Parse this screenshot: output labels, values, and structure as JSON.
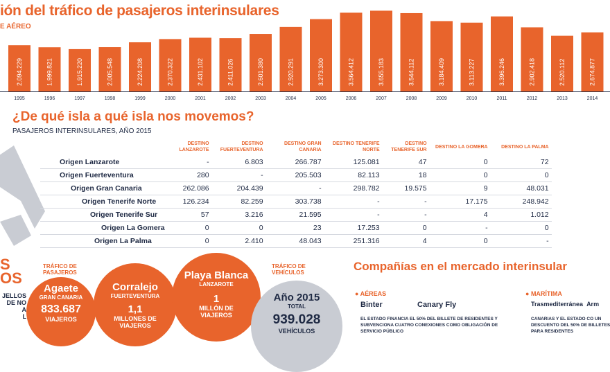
{
  "header": {
    "title": "ión del tráfico de pasajeros interinsulares",
    "subtitle": "E AÉREO"
  },
  "chart_data": {
    "type": "bar",
    "categories": [
      "1995",
      "1996",
      "1997",
      "1998",
      "1999",
      "2000",
      "2001",
      "2002",
      "2003",
      "2004",
      "2005",
      "2006",
      "2007",
      "2008",
      "2009",
      "2010",
      "2011",
      "2012",
      "2013",
      "2014"
    ],
    "values": [
      2094229,
      1999821,
      1915220,
      2005548,
      2224208,
      2370322,
      2431102,
      2411026,
      2601380,
      2920291,
      3273300,
      3564412,
      3655183,
      3544112,
      3184409,
      3113227,
      3396246,
      2902418,
      2520112,
      2674877
    ],
    "labels": [
      "2.094.229",
      "1.999.821",
      "1.915.220",
      "2.005.548",
      "2.224.208",
      "2.370.322",
      "2.431.102",
      "2.411.026",
      "2.601.380",
      "2.920.291",
      "3.273.300",
      "3.564.412",
      "3.655.183",
      "3.544.112",
      "3.184.409",
      "3.113.227",
      "3.396.246",
      "2.902.418",
      "2.520.112",
      "2.674.877"
    ],
    "ylim": [
      0,
      3700000
    ],
    "color": "#e8642c"
  },
  "section2": {
    "title": "¿De qué isla a qué isla nos movemos?",
    "subtitle": "PASAJEROS INTERINSULARES, AÑO 2015",
    "columns": [
      "DESTINO LANZAROTE",
      "DESTINO FUERTEVENTURA",
      "DESTINO GRAN CANARIA",
      "DESTINO TENERIFE NORTE",
      "DESTINO TENERIFE SUR",
      "DESTINO LA GOMERA",
      "DESTINO LA PALMA"
    ],
    "rows": [
      {
        "label": "Origen Lanzarote",
        "values": [
          "-",
          "6.803",
          "266.787",
          "125.081",
          "47",
          "0",
          "72"
        ]
      },
      {
        "label": "Origen Fuerteventura",
        "values": [
          "280",
          "-",
          "205.503",
          "82.113",
          "18",
          "0",
          "0"
        ]
      },
      {
        "label": "Origen Gran Canaria",
        "values": [
          "262.086",
          "204.439",
          "-",
          "298.782",
          "19.575",
          "9",
          "48.031"
        ]
      },
      {
        "label": "Origen Tenerife Norte",
        "values": [
          "126.234",
          "82.259",
          "303.738",
          "-",
          "-",
          "17.175",
          "248.942"
        ]
      },
      {
        "label": "Origen Tenerife Sur",
        "values": [
          "57",
          "3.216",
          "21.595",
          "-",
          "-",
          "4",
          "1.012"
        ]
      },
      {
        "label": "Origen La Gomera",
        "values": [
          "0",
          "0",
          "23",
          "17.253",
          "0",
          "-",
          "0"
        ]
      },
      {
        "label": "Origen La Palma",
        "values": [
          "0",
          "2.410",
          "48.043",
          "251.316",
          "4",
          "0",
          "-"
        ]
      }
    ]
  },
  "section3": {
    "left_partial": [
      "S",
      "OS"
    ],
    "left_note": [
      "JELLOS",
      "DE NO",
      "A",
      "L"
    ],
    "traffic_label": "TRÁFICO DE PASAJEROS",
    "traffic_label2": "TRÁFICO DE VEHÍCULOS",
    "agaete": {
      "name": "Agaete",
      "island": "GRAN CANARIA",
      "value": "833.687",
      "unit": "VIAJEROS"
    },
    "corralejo": {
      "name": "Corralejo",
      "island": "FUERTEVENTURA",
      "value": "1,1",
      "unit": "MILLONES DE VIAJEROS"
    },
    "playa": {
      "name": "Playa Blanca",
      "island": "LANZAROTE",
      "value": "1",
      "unit": "MILLÓN DE VIAJEROS"
    },
    "vehiculos": {
      "name": "Año 2015",
      "sub": "TOTAL",
      "value": "939.028",
      "unit": "VEHÍCULOS"
    }
  },
  "section4": {
    "title": "Compañías en el mercado interinsular",
    "aereas_label": "AÉREAS",
    "maritima_label": "MARÍTIMA",
    "airline1": "Binter",
    "airline2": "Canary Fly",
    "ship1": "Trasmediterránea",
    "ship2": "Arm",
    "note1": "EL ESTADO FINANCIA EL 50% DEL BILLETE DE RESIDENTES Y SUBVENCIONA CUATRO CONEXIONES COMO OBLIGACIÓN DE SERVICIO PÚBLICO",
    "note2": "CANARIAS Y EL ESTADO CO UN DESCUENTO DEL 50% DE BILLETES PARA RESIDENTES"
  }
}
